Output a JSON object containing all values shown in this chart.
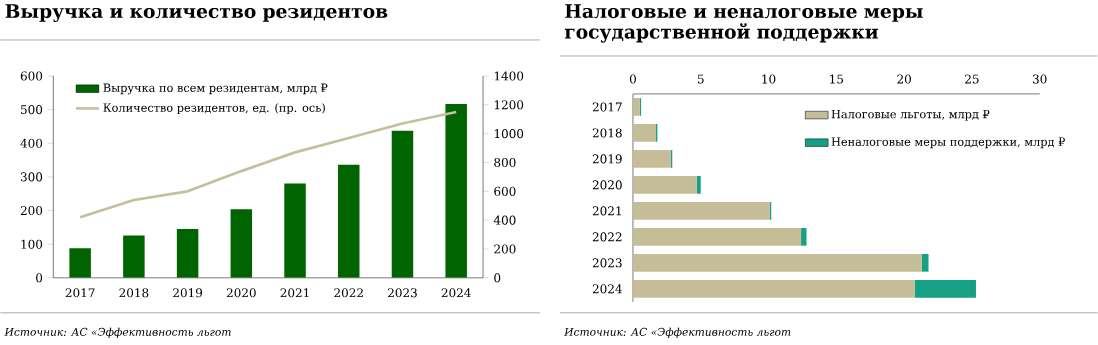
{
  "chart_data": [
    {
      "type": "bar",
      "title": "Выручка и количество резидентов",
      "categories": [
        "2017",
        "2018",
        "2019",
        "2020",
        "2021",
        "2022",
        "2023",
        "2024"
      ],
      "series": [
        {
          "name": "Выручка по всем резидентам, млрд ₽",
          "type": "bar",
          "color": "#006400",
          "values": [
            88,
            126,
            145,
            204,
            280,
            336,
            437,
            517
          ]
        },
        {
          "name": "Количество резидентов, ед. (пр. ось)",
          "type": "line",
          "axis": "y2",
          "color": "#c4bf9c",
          "values": [
            420,
            540,
            600,
            740,
            870,
            970,
            1070,
            1150
          ]
        }
      ],
      "ylim": [
        0,
        600
      ],
      "yticks": [
        0,
        100,
        200,
        300,
        400,
        500,
        600
      ],
      "y2lim": [
        0,
        1400
      ],
      "y2ticks": [
        0,
        200,
        400,
        600,
        800,
        1000,
        1200,
        1400
      ],
      "legend": "top left",
      "annotations": [
        "Источник: АС «Эффективность льгот"
      ]
    },
    {
      "type": "bar",
      "orientation": "horizontal",
      "stacked": true,
      "title": "Налоговые и неналоговые меры государственной поддержки",
      "categories": [
        "2017",
        "2018",
        "2019",
        "2020",
        "2021",
        "2022",
        "2023",
        "2024"
      ],
      "series": [
        {
          "name": "Налоговые льготы, млрд ₽",
          "color": "#c4bd97",
          "values": [
            0.5,
            1.7,
            2.8,
            4.7,
            10.1,
            12.4,
            21.3,
            20.8
          ]
        },
        {
          "name": "Неналоговые меры поддержки, млрд ₽",
          "color": "#16a085",
          "values": [
            0.1,
            0.1,
            0.1,
            0.3,
            0.1,
            0.4,
            0.5,
            4.5
          ]
        }
      ],
      "xlim": [
        0,
        30
      ],
      "xticks": [
        0,
        5,
        10,
        15,
        20,
        25,
        30
      ],
      "legend": "top right",
      "annotations": [
        "Источник: АС «Эффективность льгот"
      ]
    }
  ]
}
